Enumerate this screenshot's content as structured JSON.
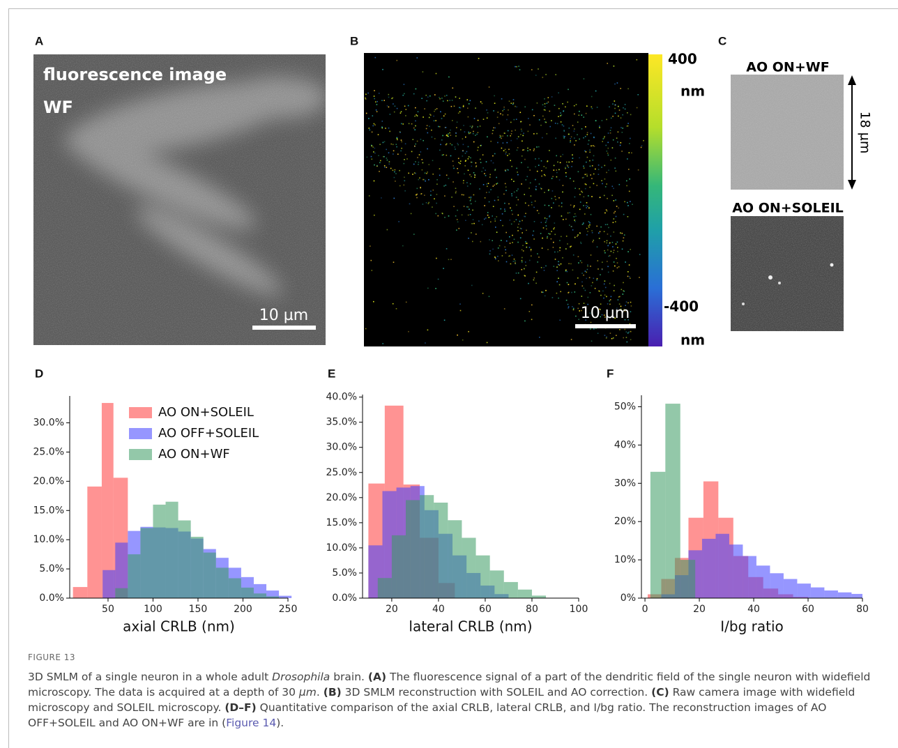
{
  "panels": {
    "a": {
      "label": "A",
      "title": "fluorescence image",
      "subtitle": "WF",
      "scale_bar": "10 µm"
    },
    "b": {
      "label": "B",
      "scale_bar": "10 µm",
      "colorbar_top": "400",
      "colorbar_top_unit": "nm",
      "colorbar_bottom": "-400",
      "colorbar_bottom_unit": "nm"
    },
    "c": {
      "label": "C",
      "top_title": "AO ON+WF",
      "bottom_title": "AO ON+SOLEIL",
      "size": "18 µm"
    }
  },
  "chart_data": [
    {
      "type": "histogram",
      "panel": "D",
      "xlabel": "axial CRLB (nm)",
      "xlim": [
        7.4,
        250
      ],
      "ylim": [
        0,
        34.6
      ],
      "xticks": [
        50,
        100,
        150,
        200,
        250
      ],
      "yticks": [
        {
          "value": 0,
          "label": "0.0%"
        },
        {
          "value": 5,
          "label": "5.0%"
        },
        {
          "value": 10,
          "label": "10.0%"
        },
        {
          "value": 15,
          "label": "15.0%"
        },
        {
          "value": 20,
          "label": "20.0%"
        },
        {
          "value": 25,
          "label": "25.0%"
        },
        {
          "value": 30,
          "label": "30.0%"
        }
      ],
      "legend": "upper right",
      "series": [
        {
          "name": "AO ON+SOLEIL",
          "color": "#ff3b3b",
          "bins": [
            11,
            27,
            43,
            56,
            72
          ],
          "values": [
            1.9,
            19.1,
            33.4,
            20.6
          ]
        },
        {
          "name": "AO OFF+SOLEIL",
          "color": "#3f3fff",
          "bins": [
            44,
            58,
            72,
            86,
            100,
            114,
            128,
            142,
            156,
            170,
            184,
            198,
            212,
            226,
            240,
            254
          ],
          "values": [
            4.8,
            9.5,
            11.5,
            12.2,
            12.1,
            12.0,
            11.4,
            10.2,
            8.4,
            6.9,
            5.2,
            3.6,
            2.4,
            1.3,
            0.4
          ]
        },
        {
          "name": "AO ON+WF",
          "color": "#3a9a63",
          "bins": [
            58,
            72,
            86,
            100,
            114,
            128,
            142,
            156,
            170,
            184,
            198,
            212,
            226,
            240
          ],
          "values": [
            1.7,
            7.5,
            12.0,
            16.0,
            16.5,
            13.3,
            10.5,
            7.8,
            5.2,
            3.4,
            1.8,
            0.8,
            0.3
          ]
        }
      ]
    },
    {
      "type": "histogram",
      "panel": "E",
      "xlabel": "lateral CRLB (nm)",
      "xlim": [
        7.5,
        100
      ],
      "ylim": [
        0,
        40.5
      ],
      "xticks": [
        20,
        40,
        60,
        80,
        100
      ],
      "yticks": [
        {
          "value": 0,
          "label": "0.0%"
        },
        {
          "value": 5,
          "label": "5.0%"
        },
        {
          "value": 10,
          "label": "10.0%"
        },
        {
          "value": 15,
          "label": "15.0%"
        },
        {
          "value": 20,
          "label": "20.0%"
        },
        {
          "value": 25,
          "label": "25.0%"
        },
        {
          "value": 30,
          "label": "30.0%"
        },
        {
          "value": 35,
          "label": "35.0%"
        },
        {
          "value": 40,
          "label": "40.0%"
        }
      ],
      "series": [
        {
          "color": "#ff3b3b",
          "bins": [
            10,
            17,
            25,
            32,
            40,
            47
          ],
          "values": [
            22.8,
            38.3,
            22.6,
            12.0,
            3.0
          ]
        },
        {
          "color": "#3f3fff",
          "bins": [
            10,
            16,
            22,
            28,
            34,
            40,
            46,
            52,
            58,
            64,
            70
          ],
          "values": [
            10.5,
            21.3,
            22.0,
            22.3,
            17.5,
            12.8,
            8.5,
            5.0,
            2.5,
            0.8
          ]
        },
        {
          "color": "#3a9a63",
          "bins": [
            14,
            20,
            26,
            32,
            38,
            44,
            50,
            56,
            62,
            68,
            74,
            80,
            86
          ],
          "values": [
            4.0,
            12.5,
            19.5,
            20.5,
            19.0,
            15.5,
            12.0,
            8.5,
            5.5,
            3.2,
            1.7,
            0.5
          ]
        }
      ]
    },
    {
      "type": "histogram",
      "panel": "F",
      "xlabel": "I/bg ratio",
      "xlim": [
        -1.3,
        80
      ],
      "ylim": [
        0,
        53
      ],
      "xticks": [
        0,
        20,
        40,
        60,
        80
      ],
      "yticks": [
        {
          "value": 0,
          "label": "0%"
        },
        {
          "value": 10,
          "label": "10%"
        },
        {
          "value": 20,
          "label": "20%"
        },
        {
          "value": 30,
          "label": "30%"
        },
        {
          "value": 40,
          "label": "40%"
        },
        {
          "value": 50,
          "label": "50%"
        }
      ],
      "series": [
        {
          "color": "#ff3b3b",
          "bins": [
            1,
            6,
            11,
            16,
            21.5,
            27,
            32.5,
            38,
            43.5,
            49,
            54.5,
            60
          ],
          "values": [
            1.0,
            5.0,
            10.5,
            21.0,
            30.5,
            21.0,
            11.0,
            5.5,
            2.5,
            1.0,
            0.3
          ]
        },
        {
          "color": "#3f3fff",
          "bins": [
            6,
            11,
            16,
            21,
            26,
            31,
            36,
            41,
            46,
            51,
            56,
            61,
            66,
            71,
            76,
            80
          ],
          "values": [
            1.0,
            6.0,
            12.5,
            15.5,
            16.8,
            14.0,
            11.0,
            8.5,
            6.5,
            5.0,
            3.8,
            2.8,
            2.0,
            1.5,
            1.1
          ]
        },
        {
          "color": "#3a9a63",
          "bins": [
            2,
            7.5,
            13,
            18.5
          ],
          "values": [
            33.0,
            50.8,
            10.0
          ]
        }
      ]
    }
  ],
  "caption": {
    "label": "FIGURE 13",
    "segments": [
      "3D SMLM of a single neuron in a whole adult ",
      "Drosophila",
      "  brain. ",
      "(A)",
      " The fluorescence signal of a part of the dendritic field of the single neuron with widefield microscopy. The data is acquired at a depth of 30 ",
      "μm",
      ". ",
      "(B)",
      " 3D SMLM reconstruction with SOLEIL and AO correction. ",
      "(C)",
      " Raw camera image with widefield microscopy and SOLEIL microscopy. ",
      "(D–F)",
      " Quantitative comparison of the axial CRLB, lateral CRLB, and I/bg ratio. The reconstruction images of AO OFF+SOLEIL and AO ON+WF are in (",
      "Figure 14",
      ")."
    ]
  }
}
